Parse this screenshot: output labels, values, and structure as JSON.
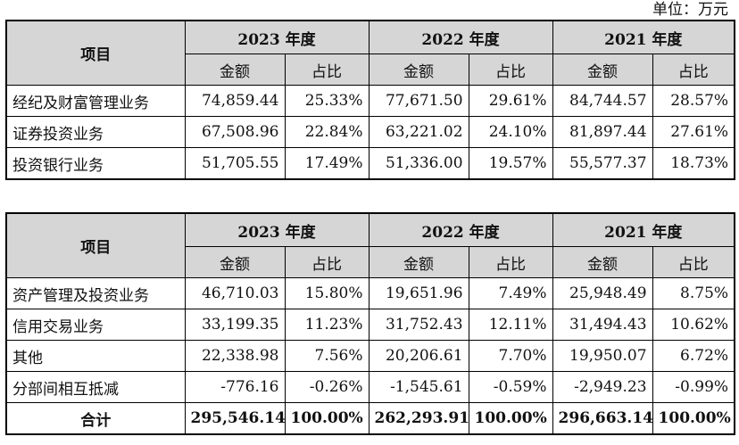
{
  "unit_label": "单位：万元",
  "headers": {
    "item": "项目",
    "years": [
      "2023 年度",
      "2022 年度",
      "2021 年度"
    ],
    "amount": "金额",
    "ratio": "占比"
  },
  "table1": {
    "rows": [
      {
        "label": "经纪及财富管理业务",
        "cells": [
          "74,859.44",
          "25.33%",
          "77,671.50",
          "29.61%",
          "84,744.57",
          "28.57%"
        ]
      },
      {
        "label": "证券投资业务",
        "cells": [
          "67,508.96",
          "22.84%",
          "63,221.02",
          "24.10%",
          "81,897.44",
          "27.61%"
        ]
      },
      {
        "label": "投资银行业务",
        "cells": [
          "51,705.55",
          "17.49%",
          "51,336.00",
          "19.57%",
          "55,577.37",
          "18.73%"
        ]
      }
    ]
  },
  "table2": {
    "rows": [
      {
        "label": "资产管理及投资业务",
        "cells": [
          "46,710.03",
          "15.80%",
          "19,651.96",
          "7.49%",
          "25,948.49",
          "8.75%"
        ]
      },
      {
        "label": "信用交易业务",
        "cells": [
          "33,199.35",
          "11.23%",
          "31,752.43",
          "12.11%",
          "31,494.43",
          "10.62%"
        ]
      },
      {
        "label": "其他",
        "cells": [
          "22,338.98",
          "7.56%",
          "20,206.61",
          "7.70%",
          "19,950.07",
          "6.72%"
        ]
      },
      {
        "label": "分部间相互抵减",
        "cells": [
          "-776.16",
          "-0.26%",
          "-1,545.61",
          "-0.59%",
          "-2,949.23",
          "-0.99%"
        ]
      }
    ],
    "total": {
      "label": "合计",
      "cells": [
        "295,546.14",
        "100.00%",
        "262,293.91",
        "100.00%",
        "296,663.14",
        "100.00%"
      ]
    }
  }
}
